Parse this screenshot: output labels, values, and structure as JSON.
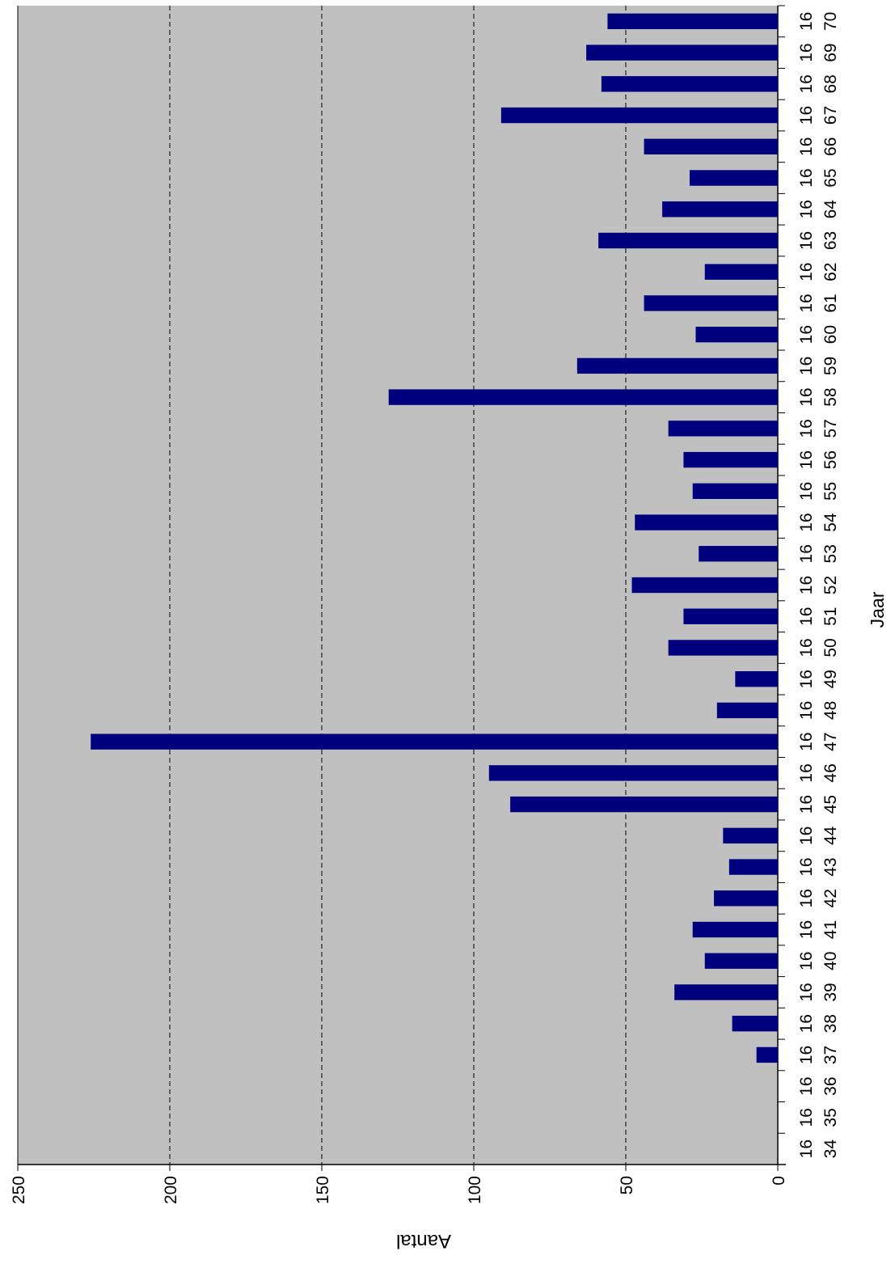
{
  "chart_data": {
    "type": "bar",
    "orientation": "rotated-90",
    "xlabel": "Jaar",
    "ylabel": "Aantal",
    "ylim": [
      0,
      250
    ],
    "yticks": [
      0,
      50,
      100,
      150,
      200,
      250
    ],
    "grid": true,
    "colors": {
      "bar": "#00007f",
      "plot_bg": "#c0c0c0",
      "grid": "#000000"
    },
    "categories": [
      [
        "16",
        "34"
      ],
      [
        "16",
        "35"
      ],
      [
        "16",
        "36"
      ],
      [
        "16",
        "37"
      ],
      [
        "16",
        "38"
      ],
      [
        "16",
        "39"
      ],
      [
        "16",
        "40"
      ],
      [
        "16",
        "41"
      ],
      [
        "16",
        "42"
      ],
      [
        "16",
        "43"
      ],
      [
        "16",
        "44"
      ],
      [
        "16",
        "45"
      ],
      [
        "16",
        "46"
      ],
      [
        "16",
        "47"
      ],
      [
        "16",
        "48"
      ],
      [
        "16",
        "49"
      ],
      [
        "16",
        "50"
      ],
      [
        "16",
        "51"
      ],
      [
        "16",
        "52"
      ],
      [
        "16",
        "53"
      ],
      [
        "16",
        "54"
      ],
      [
        "16",
        "55"
      ],
      [
        "16",
        "56"
      ],
      [
        "16",
        "57"
      ],
      [
        "16",
        "58"
      ],
      [
        "16",
        "59"
      ],
      [
        "16",
        "60"
      ],
      [
        "16",
        "61"
      ],
      [
        "16",
        "62"
      ],
      [
        "16",
        "63"
      ],
      [
        "16",
        "64"
      ],
      [
        "16",
        "65"
      ],
      [
        "16",
        "66"
      ],
      [
        "16",
        "67"
      ],
      [
        "16",
        "68"
      ],
      [
        "16",
        "69"
      ],
      [
        "16",
        "70"
      ]
    ],
    "values": [
      0,
      0,
      0,
      7,
      15,
      34,
      24,
      28,
      21,
      16,
      18,
      88,
      95,
      226,
      20,
      14,
      36,
      31,
      48,
      26,
      47,
      28,
      31,
      36,
      128,
      66,
      27,
      44,
      24,
      59,
      38,
      29,
      44,
      91,
      58,
      63,
      56
    ]
  }
}
